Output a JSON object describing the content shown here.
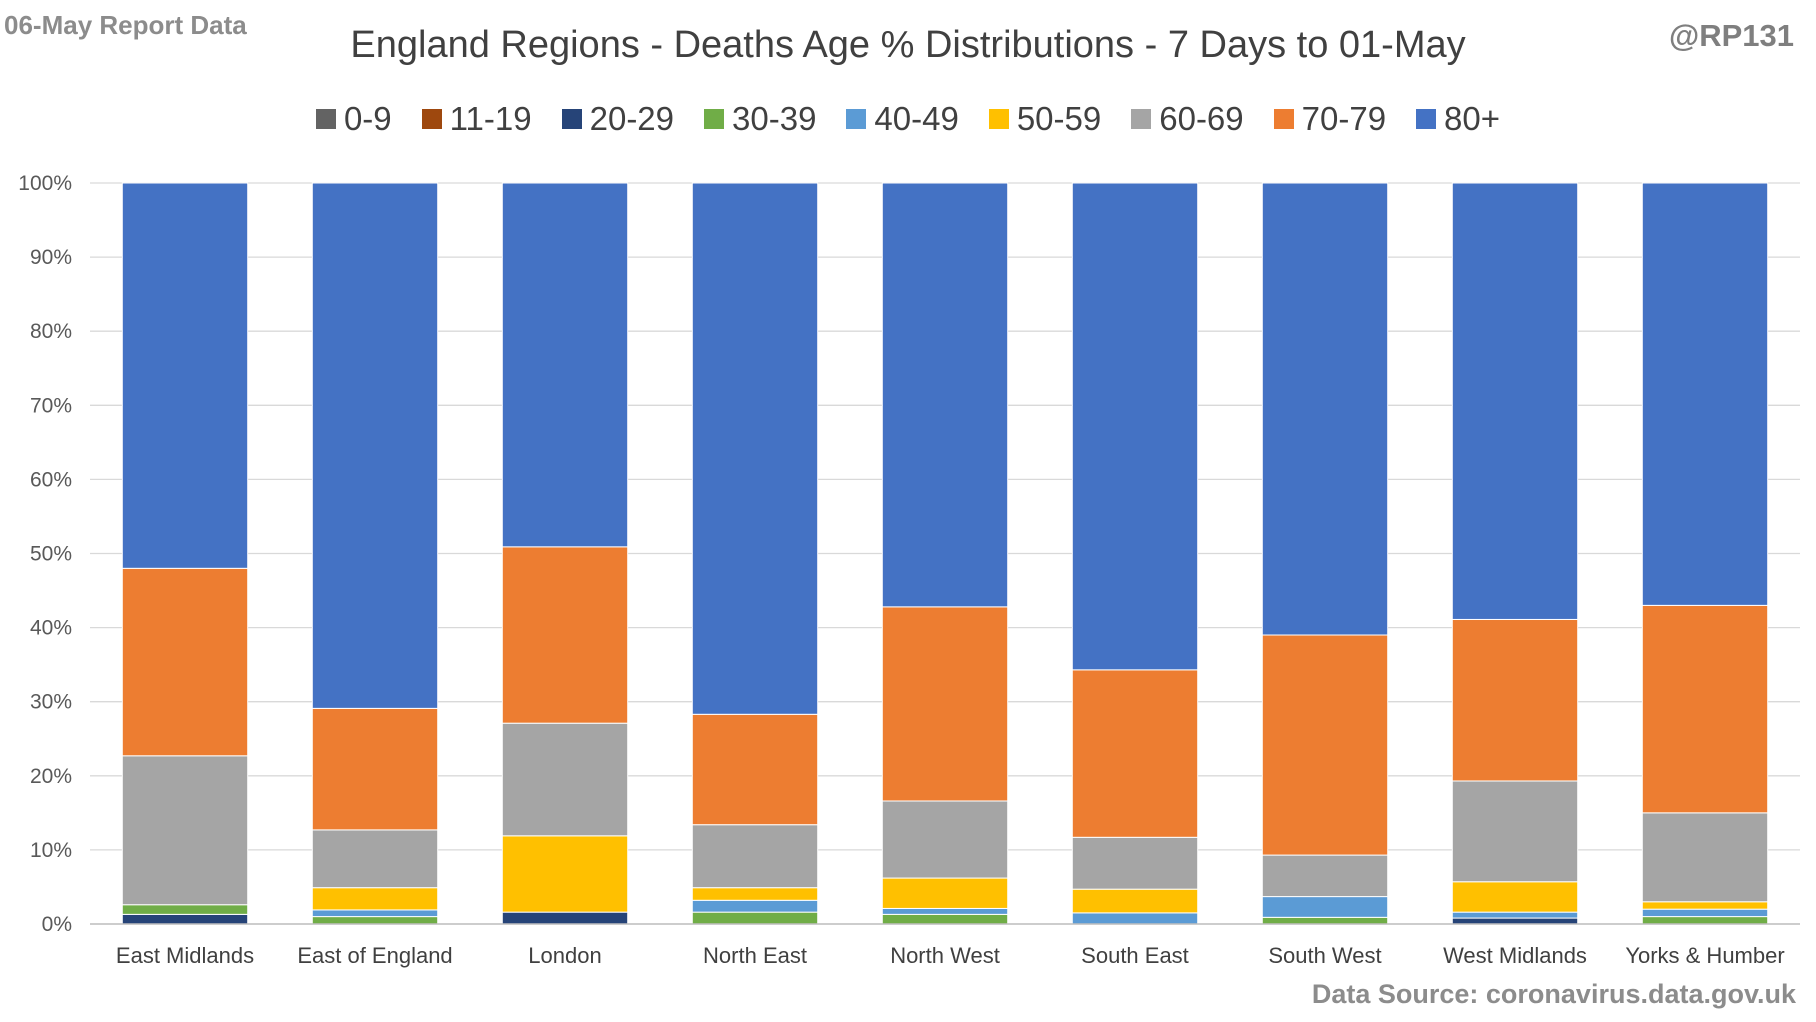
{
  "header": {
    "report_label": "06-May Report Data",
    "author": "@RP131",
    "source": "Data Source: coronavirus.data.gov.uk"
  },
  "chart_data": {
    "type": "bar",
    "stacked": true,
    "title": "England Regions - Deaths Age % Distributions - 7 Days to 01-May",
    "xlabel": "",
    "ylabel": "",
    "ylim": [
      0,
      100
    ],
    "y_ticks": [
      "0%",
      "10%",
      "20%",
      "30%",
      "40%",
      "50%",
      "60%",
      "70%",
      "80%",
      "90%",
      "100%"
    ],
    "grid": true,
    "legend_position": "top",
    "categories": [
      "East Midlands",
      "East of England",
      "London",
      "North East",
      "North West",
      "South East",
      "South West",
      "West Midlands",
      "Yorks & Humber"
    ],
    "series": [
      {
        "name": "0-9",
        "color": "#636363",
        "values": [
          0,
          0,
          0,
          0,
          0,
          0,
          0,
          0,
          0
        ]
      },
      {
        "name": "11-19",
        "color": "#9e480e",
        "values": [
          0,
          0,
          0,
          0,
          0,
          0,
          0,
          0,
          0
        ]
      },
      {
        "name": "20-29",
        "color": "#264478",
        "values": [
          1.3,
          0,
          1.6,
          0,
          0,
          0,
          0,
          0.8,
          0
        ]
      },
      {
        "name": "30-39",
        "color": "#70ad47",
        "values": [
          1.3,
          1.0,
          0,
          1.6,
          1.3,
          0,
          0.9,
          0,
          1.0
        ]
      },
      {
        "name": "40-49",
        "color": "#5b9bd5",
        "values": [
          0,
          0.9,
          0,
          1.6,
          0.8,
          1.5,
          2.8,
          0.8,
          1.0
        ]
      },
      {
        "name": "50-59",
        "color": "#ffc000",
        "values": [
          0,
          3.0,
          10.3,
          1.7,
          4.1,
          3.2,
          0,
          4.1,
          1.0
        ]
      },
      {
        "name": "60-69",
        "color": "#a5a5a5",
        "values": [
          20.1,
          7.8,
          15.2,
          8.5,
          10.4,
          7.0,
          5.6,
          13.6,
          12.0
        ]
      },
      {
        "name": "70-79",
        "color": "#ed7d31",
        "values": [
          25.3,
          16.4,
          23.8,
          14.9,
          26.2,
          22.6,
          29.7,
          21.8,
          28.0
        ]
      },
      {
        "name": "80+",
        "color": "#4472c4",
        "values": [
          52.0,
          70.9,
          49.1,
          71.7,
          57.2,
          65.7,
          61.0,
          58.9,
          57.0
        ]
      }
    ]
  }
}
